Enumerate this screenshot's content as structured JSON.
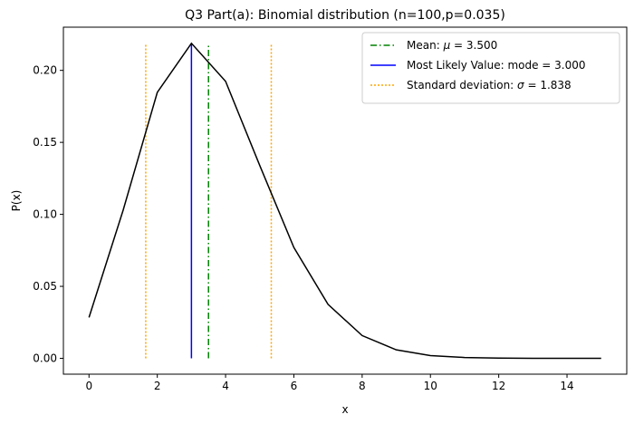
{
  "chart_data": {
    "type": "line",
    "title": "Q3 Part(a): Binomial distribution (n=100,p=0.035)",
    "xlabel": "x",
    "ylabel": "P(x)",
    "xlim": [
      -0.75,
      15.75
    ],
    "ylim": [
      -0.011,
      0.23
    ],
    "xticks": [
      0,
      2,
      4,
      6,
      8,
      10,
      12,
      14
    ],
    "yticks": [
      0.0,
      0.05,
      0.1,
      0.15,
      0.2
    ],
    "ytick_labels": [
      "0.00",
      "0.05",
      "0.10",
      "0.15",
      "0.20"
    ],
    "grid": false,
    "legend_position": "top-right",
    "series": [
      {
        "kind": "line",
        "color": "#000000",
        "x": [
          0,
          1,
          2,
          3,
          4,
          5,
          6,
          7,
          8,
          9,
          10,
          11,
          12,
          13,
          14,
          15
        ],
        "y": [
          0.0284,
          0.1029,
          0.1847,
          0.2188,
          0.1924,
          0.134,
          0.077,
          0.0375,
          0.0158,
          0.0059,
          0.0019,
          0.0006,
          0.0002,
          4e-05,
          1e-05,
          2e-06
        ]
      }
    ],
    "vlines": [
      {
        "name": "mean",
        "label": "Mean: μ = 3.500",
        "x": [
          3.5
        ],
        "ymin": 0,
        "ymax": 0.2188,
        "color": "#008000",
        "style": "dashdot"
      },
      {
        "name": "mode",
        "label": "Most Likely Value: mode = 3.000",
        "x": [
          3.0
        ],
        "ymin": 0,
        "ymax": 0.2188,
        "color": "#0000ff",
        "style": "solid"
      },
      {
        "name": "std",
        "label": "Standard deviation: σ = 1.838",
        "x": [
          1.662,
          5.338
        ],
        "ymin": 0,
        "ymax": 0.2188,
        "color": "#ffa500",
        "style": "dotted"
      }
    ],
    "legend": [
      {
        "prefix": "Mean: ",
        "symbol": "μ",
        "suffix": " = 3.500",
        "color": "#008000",
        "style": "dashdot"
      },
      {
        "prefix": "Most Likely Value: mode = 3.000",
        "symbol": "",
        "suffix": "",
        "color": "#0000ff",
        "style": "solid"
      },
      {
        "prefix": "Standard deviation: ",
        "symbol": "σ",
        "suffix": " = 1.838",
        "color": "#ffa500",
        "style": "dotted"
      }
    ]
  }
}
